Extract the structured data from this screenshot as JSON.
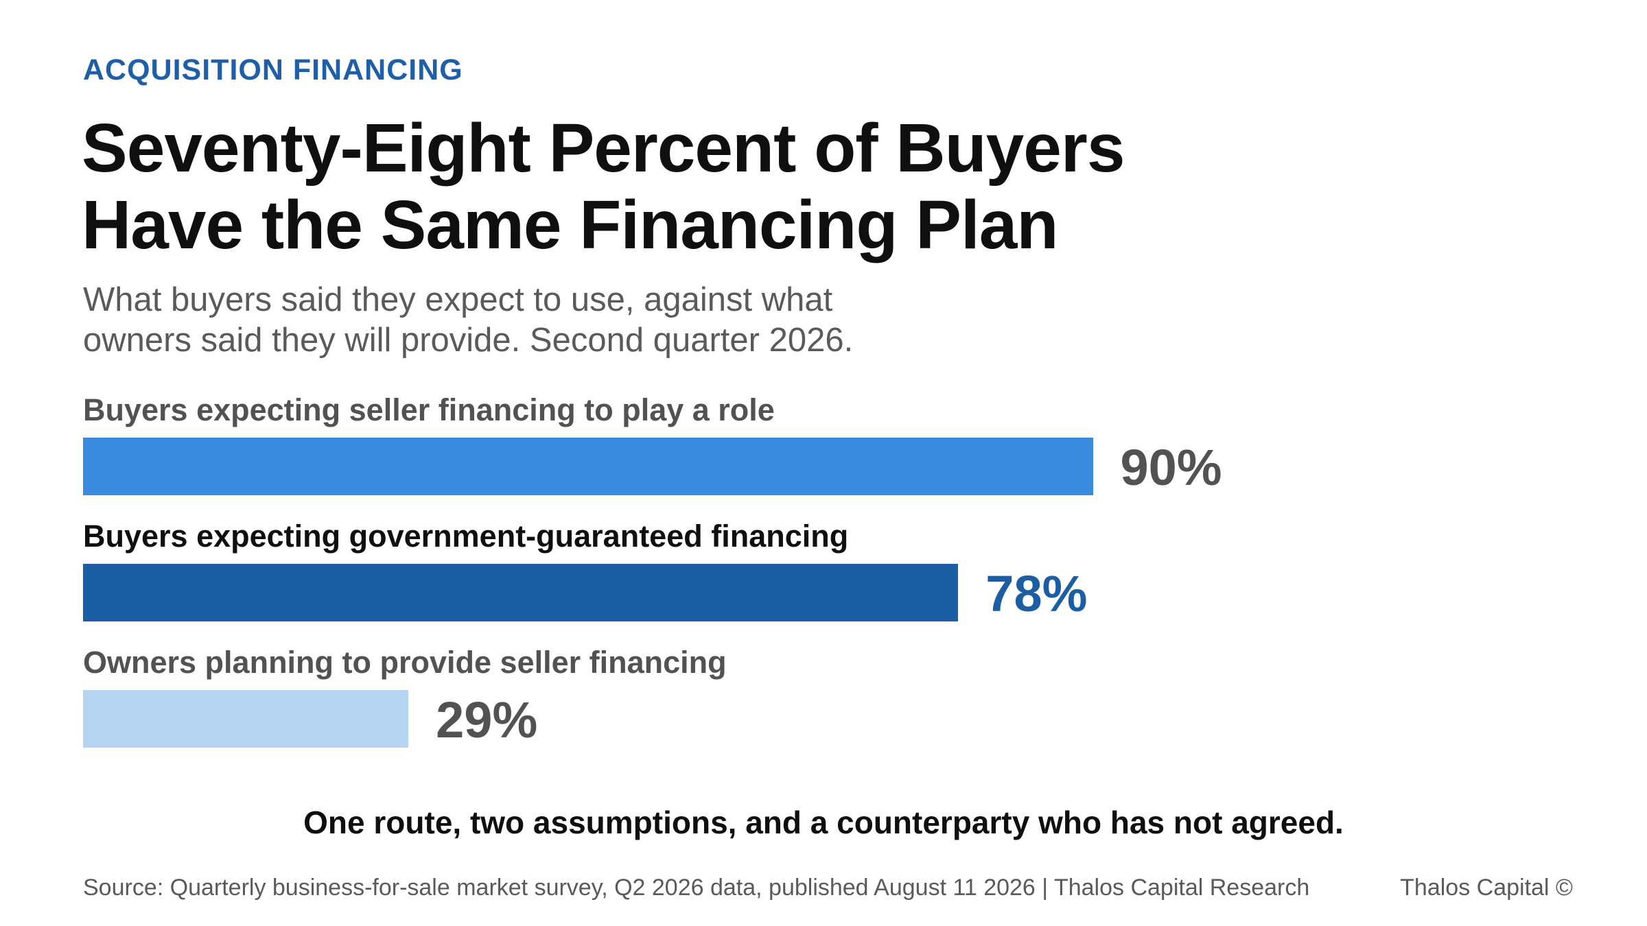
{
  "header": {
    "eyebrow": "ACQUISITION FINANCING",
    "title_lines": [
      "Seventy-Eight Percent of Buyers",
      "Have the Same Financing Plan"
    ],
    "subtitle_lines": [
      "What buyers said they expect to use, against what",
      "owners said they will provide. Second quarter 2026."
    ]
  },
  "chart_data": {
    "type": "bar",
    "orientation": "horizontal",
    "unit": "%",
    "xlim": [
      0,
      100
    ],
    "grid": false,
    "categories": [
      "Buyers expecting seller financing to play a role",
      "Buyers expecting government-guaranteed financing",
      "Owners planning to provide seller financing"
    ],
    "values": [
      90,
      78,
      29
    ],
    "value_labels": [
      "90%",
      "78%",
      "29%"
    ],
    "bar_colors": [
      "#3a8ade",
      "#1b5ea3",
      "#b4d4f2"
    ],
    "label_colors": [
      "#525252",
      "#0f0f0f",
      "#525252"
    ],
    "value_colors": [
      "#525252",
      "#1b5ea3",
      "#525252"
    ]
  },
  "footer": {
    "takeaway": "One route, two assumptions, and a counterparty who has not agreed.",
    "source": "Source: Quarterly business-for-sale market survey, Q2 2026 data, published August 11 2026 | Thalos Capital Research",
    "brand": "Thalos Capital ©"
  }
}
